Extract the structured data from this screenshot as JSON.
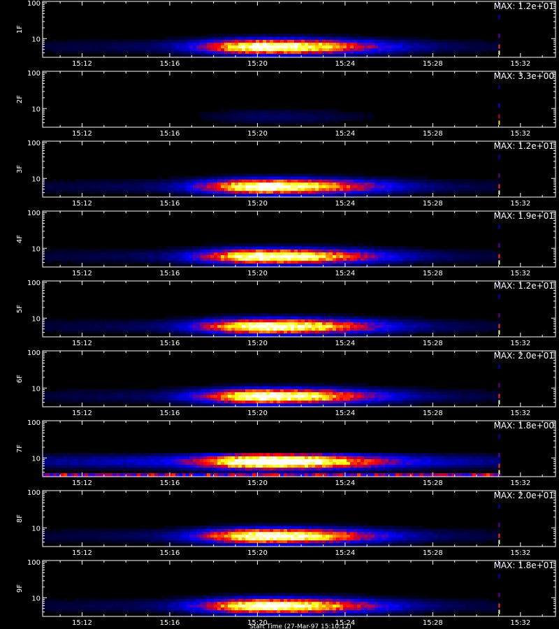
{
  "colors": {
    "background": "#000000",
    "axes": "#ffffff"
  },
  "chart_data": {
    "type": "heatmap",
    "colormap": [
      "#000000",
      "#0000ff",
      "#ff0000",
      "#ffff00",
      "#ffffff"
    ],
    "x_axis": {
      "label": "Start Time (27-Mar-97 15:10:12)",
      "ticks": [
        "15:12",
        "15:16",
        "15:20",
        "15:24",
        "15:28",
        "15:32"
      ],
      "tick_minutes": [
        12,
        16,
        20,
        24,
        28,
        32
      ],
      "range_minutes": [
        10.2,
        33.6
      ]
    },
    "y_axis": {
      "scale": "log",
      "tick_labels": [
        "10",
        "100"
      ],
      "tick_values": [
        10,
        100
      ],
      "range": [
        3,
        110
      ]
    },
    "panels": [
      {
        "detector": "1F",
        "max_label": "MAX: 1.2e+01",
        "peak_minute": 20.4,
        "peak_y": 6,
        "spread": 3.2,
        "edge_minute": 31.0
      },
      {
        "detector": "2F",
        "max_label": "MAX: 3.3e+00",
        "peak_minute": 20.4,
        "peak_y": 6,
        "spread": 3.2,
        "edge_minute": 31.0
      },
      {
        "detector": "3F",
        "max_label": "MAX: 1.2e+01",
        "peak_minute": 20.4,
        "peak_y": 6,
        "spread": 3.2,
        "edge_minute": 31.0
      },
      {
        "detector": "4F",
        "max_label": "MAX: 1.9e+01",
        "peak_minute": 20.4,
        "peak_y": 6,
        "spread": 3.2,
        "edge_minute": 31.0
      },
      {
        "detector": "5F",
        "max_label": "MAX: 1.2e+01",
        "peak_minute": 20.4,
        "peak_y": 6,
        "spread": 3.2,
        "edge_minute": 31.0
      },
      {
        "detector": "6F",
        "max_label": "MAX: 2.0e+01",
        "peak_minute": 20.4,
        "peak_y": 6,
        "spread": 3.2,
        "edge_minute": 31.0
      },
      {
        "detector": "7F",
        "max_label": "MAX: 1.8e+00",
        "peak_minute": 20.4,
        "peak_y": 8,
        "spread": 3.2,
        "edge_minute": 31.0
      },
      {
        "detector": "8F",
        "max_label": "MAX: 2.0e+01",
        "peak_minute": 20.4,
        "peak_y": 6,
        "spread": 3.2,
        "edge_minute": 31.0
      },
      {
        "detector": "9F",
        "max_label": "MAX: 1.8e+01",
        "peak_minute": 20.4,
        "peak_y": 6,
        "spread": 3.2,
        "edge_minute": 31.0
      }
    ]
  }
}
